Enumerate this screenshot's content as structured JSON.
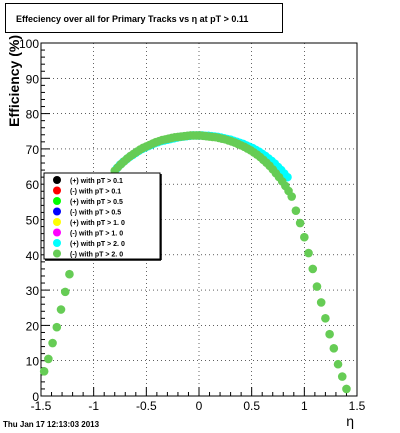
{
  "chart_data": {
    "type": "scatter",
    "title": "Effeciency over all for Primary Tracks vs    η at pT > 0.11",
    "xlabel": "η",
    "ylabel": "Efficiency (%)",
    "xlim": [
      -1.5,
      1.5
    ],
    "ylim": [
      0,
      100
    ],
    "xticks": [
      "-1.5",
      "-1",
      "-0.5",
      "0",
      "0.5",
      "1",
      "1.5"
    ],
    "yticks": [
      "0",
      "10",
      "20",
      "30",
      "40",
      "50",
      "60",
      "70",
      "80",
      "90",
      "100"
    ],
    "grid": true,
    "legend_position": "center-left",
    "series": [
      {
        "name": "(+) with pT > 0.1",
        "color": "#000000",
        "x": [],
        "y": []
      },
      {
        "name": "(-) with pT > 0.1",
        "color": "#ff0000",
        "x": [],
        "y": []
      },
      {
        "name": "(+) with pT > 0.5",
        "color": "#00ff00",
        "x": [],
        "y": []
      },
      {
        "name": "(-) with pT > 0.5",
        "color": "#0000ff",
        "x": [],
        "y": []
      },
      {
        "name": "(+) with pT > 1. 0",
        "color": "#ffff00",
        "x": [],
        "y": []
      },
      {
        "name": "(-) with pT > 1. 0",
        "color": "#ff00ff",
        "x": [],
        "y": []
      },
      {
        "name": "(+) with pT > 2. 0",
        "color": "#00ffff",
        "x": [
          -0.78,
          -0.75,
          -0.72,
          -0.69,
          -0.66,
          -0.63,
          -0.6,
          -0.57,
          -0.54,
          -0.51,
          -0.48,
          -0.45,
          -0.42,
          -0.39,
          -0.36,
          -0.33,
          -0.3,
          -0.27,
          -0.24,
          -0.21,
          -0.18,
          -0.15,
          -0.12,
          -0.09,
          -0.06,
          -0.03,
          0.0,
          0.03,
          0.06,
          0.09,
          0.12,
          0.15,
          0.18,
          0.21,
          0.24,
          0.27,
          0.3,
          0.33,
          0.36,
          0.39,
          0.42,
          0.45,
          0.48,
          0.51,
          0.54,
          0.57,
          0.6,
          0.63,
          0.66,
          0.69,
          0.72,
          0.75,
          0.78,
          0.81,
          0.84
        ],
        "y": [
          64.5,
          65.5,
          66.3,
          67.0,
          67.7,
          68.3,
          68.9,
          69.5,
          70.0,
          70.4,
          70.8,
          71.2,
          71.6,
          71.9,
          72.2,
          72.4,
          72.6,
          72.8,
          73.0,
          73.2,
          73.4,
          73.5,
          73.6,
          73.7,
          73.8,
          73.8,
          73.8,
          73.8,
          73.7,
          73.7,
          73.6,
          73.5,
          73.4,
          73.2,
          73.0,
          72.8,
          72.6,
          72.3,
          72.0,
          71.7,
          71.4,
          71.0,
          70.6,
          70.2,
          69.7,
          69.2,
          68.6,
          68.0,
          67.3,
          66.6,
          65.8,
          64.9,
          64.0,
          63.0,
          62.0
        ]
      },
      {
        "name": "(-) with pT > 2. 0",
        "color": "#66cc55",
        "x": [
          -1.47,
          -1.43,
          -1.39,
          -1.35,
          -1.31,
          -1.27,
          -1.23,
          -0.8,
          -0.77,
          -0.74,
          -0.71,
          -0.68,
          -0.65,
          -0.62,
          -0.59,
          -0.56,
          -0.53,
          -0.5,
          -0.47,
          -0.44,
          -0.41,
          -0.38,
          -0.35,
          -0.32,
          -0.29,
          -0.26,
          -0.23,
          -0.2,
          -0.17,
          -0.14,
          -0.11,
          -0.08,
          -0.05,
          -0.02,
          0.01,
          0.04,
          0.07,
          0.1,
          0.13,
          0.16,
          0.19,
          0.22,
          0.25,
          0.28,
          0.31,
          0.34,
          0.37,
          0.4,
          0.43,
          0.46,
          0.49,
          0.52,
          0.55,
          0.58,
          0.61,
          0.64,
          0.67,
          0.7,
          0.73,
          0.76,
          0.79,
          0.82,
          0.85,
          0.88,
          0.92,
          0.96,
          1.0,
          1.04,
          1.08,
          1.12,
          1.16,
          1.2,
          1.24,
          1.28,
          1.32,
          1.36,
          1.4,
          1.44,
          1.48
        ],
        "y": [
          7,
          10.5,
          15,
          19.5,
          24.5,
          29.5,
          34.5,
          63.8,
          64.8,
          65.7,
          66.5,
          67.3,
          68.0,
          68.6,
          69.2,
          69.8,
          70.3,
          70.7,
          71.1,
          71.5,
          71.9,
          72.2,
          72.5,
          72.7,
          72.9,
          73.1,
          73.3,
          73.4,
          73.5,
          73.6,
          73.7,
          73.8,
          73.8,
          73.8,
          73.8,
          73.7,
          73.6,
          73.5,
          73.4,
          73.3,
          73.1,
          72.9,
          72.7,
          72.4,
          72.1,
          71.8,
          71.4,
          71.0,
          70.6,
          70.1,
          69.6,
          69.0,
          68.4,
          67.7,
          66.9,
          66.1,
          65.2,
          64.2,
          63.1,
          62.0,
          60.8,
          59.5,
          58.1,
          56.5,
          52.5,
          49,
          45,
          40.5,
          36,
          31,
          26.5,
          22,
          17.5,
          13.5,
          9,
          5.5,
          2,
          -1,
          -3
        ]
      }
    ]
  },
  "footer": {
    "timestamp": "Thu Jan 17 12:13:03 2013"
  }
}
